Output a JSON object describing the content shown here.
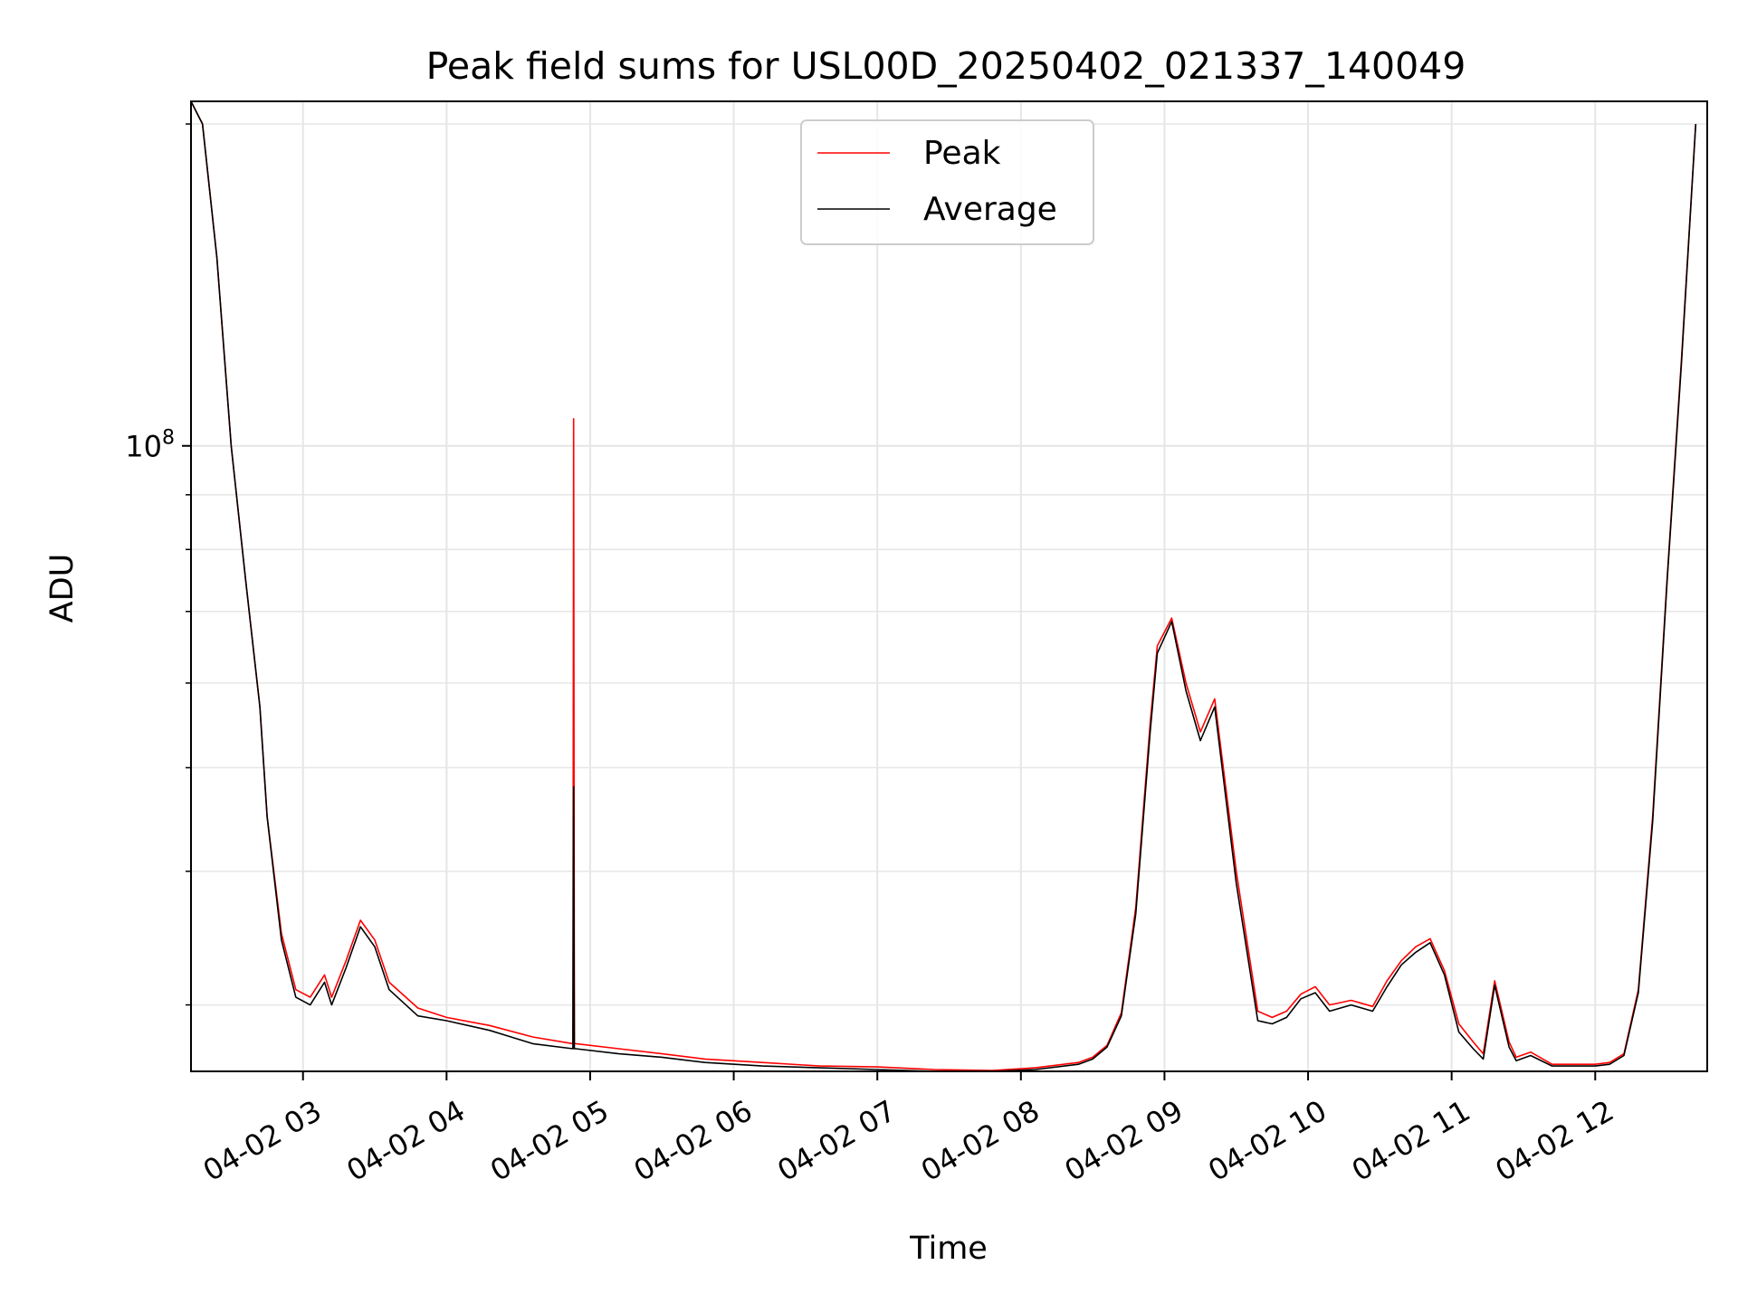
{
  "chart_data": {
    "type": "line",
    "title": "Peak field sums for USL00D_20250402_021337_140049",
    "xlabel": "Time",
    "ylabel": "ADU",
    "yscale": "log",
    "xlim": [
      2.22,
      12.78
    ],
    "ylim": [
      26000000,
      210000000
    ],
    "x_ticks": [
      {
        "value": 3,
        "label": "04-02 03"
      },
      {
        "value": 4,
        "label": "04-02 04"
      },
      {
        "value": 5,
        "label": "04-02 05"
      },
      {
        "value": 6,
        "label": "04-02 06"
      },
      {
        "value": 7,
        "label": "04-02 07"
      },
      {
        "value": 8,
        "label": "04-02 08"
      },
      {
        "value": 9,
        "label": "04-02 09"
      },
      {
        "value": 10,
        "label": "04-02 10"
      },
      {
        "value": 11,
        "label": "04-02 11"
      },
      {
        "value": 12,
        "label": "04-02 12"
      }
    ],
    "y_ticks": [
      {
        "value": 100000000,
        "base": "10",
        "exp": "8"
      }
    ],
    "y_minor_ticks": [
      30000000,
      40000000,
      50000000,
      60000000,
      70000000,
      80000000,
      90000000,
      200000000
    ],
    "grid": true,
    "legend": "top-center",
    "series": [
      {
        "name": "Peak",
        "color": "#ff0000",
        "x": [
          2.22,
          2.3,
          2.4,
          2.5,
          2.6,
          2.7,
          2.75,
          2.85,
          2.95,
          3.05,
          3.15,
          3.2,
          3.3,
          3.4,
          3.5,
          3.6,
          3.8,
          4.0,
          4.3,
          4.6,
          4.88,
          4.885,
          4.89,
          4.9,
          5.2,
          5.5,
          5.8,
          6.2,
          6.6,
          7.0,
          7.4,
          7.8,
          8.1,
          8.4,
          8.5,
          8.6,
          8.7,
          8.8,
          8.9,
          8.95,
          9.05,
          9.15,
          9.25,
          9.35,
          9.5,
          9.65,
          9.75,
          9.85,
          9.95,
          10.05,
          10.15,
          10.3,
          10.45,
          10.55,
          10.65,
          10.75,
          10.85,
          10.95,
          11.05,
          11.15,
          11.22,
          11.3,
          11.4,
          11.45,
          11.55,
          11.7,
          11.9,
          12.0,
          12.1,
          12.2,
          12.3,
          12.4,
          12.5,
          12.6,
          12.7
        ],
        "y": [
          210000000,
          200000000,
          150000000,
          100000000,
          75000000,
          57000000,
          45000000,
          35000000,
          31000000,
          30500000,
          32000000,
          30500000,
          33000000,
          36000000,
          34500000,
          31500000,
          29800000,
          29200000,
          28700000,
          28000000,
          27600000,
          106000000,
          27600000,
          27600000,
          27300000,
          27000000,
          26700000,
          26500000,
          26300000,
          26250000,
          26100000,
          26050000,
          26200000,
          26500000,
          26800000,
          27500000,
          29500000,
          37000000,
          55000000,
          65000000,
          69000000,
          60000000,
          54000000,
          58000000,
          40000000,
          29600000,
          29200000,
          29600000,
          30700000,
          31200000,
          30000000,
          30300000,
          29900000,
          31600000,
          33000000,
          34000000,
          34600000,
          32300000,
          28800000,
          27700000,
          27000000,
          31600000,
          27700000,
          26800000,
          27100000,
          26400000,
          26400000,
          26400000,
          26500000,
          27000000,
          31000000,
          45000000,
          75000000,
          120000000,
          200000000
        ]
      },
      {
        "name": "Average",
        "color": "#000000",
        "x": [
          2.22,
          2.3,
          2.4,
          2.5,
          2.6,
          2.7,
          2.75,
          2.85,
          2.95,
          3.05,
          3.15,
          3.2,
          3.3,
          3.4,
          3.5,
          3.6,
          3.8,
          4.0,
          4.3,
          4.6,
          4.88,
          4.885,
          4.89,
          4.9,
          5.2,
          5.5,
          5.8,
          6.2,
          6.6,
          7.0,
          7.4,
          7.8,
          8.1,
          8.4,
          8.5,
          8.6,
          8.7,
          8.8,
          8.9,
          8.95,
          9.05,
          9.15,
          9.25,
          9.35,
          9.5,
          9.65,
          9.75,
          9.85,
          9.95,
          10.05,
          10.15,
          10.3,
          10.45,
          10.55,
          10.65,
          10.75,
          10.85,
          10.95,
          11.05,
          11.15,
          11.22,
          11.3,
          11.4,
          11.45,
          11.55,
          11.7,
          11.9,
          12.0,
          12.1,
          12.2,
          12.3,
          12.4,
          12.5,
          12.6,
          12.7
        ],
        "y": [
          210000000,
          200000000,
          150000000,
          100000000,
          75000000,
          57000000,
          45000000,
          34500000,
          30500000,
          30000000,
          31500000,
          30000000,
          32500000,
          35500000,
          34000000,
          31000000,
          29300000,
          29000000,
          28400000,
          27600000,
          27300000,
          48000000,
          27300000,
          27300000,
          27000000,
          26800000,
          26500000,
          26300000,
          26200000,
          26100000,
          26000000,
          26000000,
          26100000,
          26400000,
          26700000,
          27400000,
          29300000,
          36500000,
          54000000,
          64000000,
          68500000,
          59000000,
          53000000,
          57000000,
          39000000,
          29000000,
          28800000,
          29200000,
          30400000,
          30800000,
          29600000,
          30000000,
          29600000,
          31200000,
          32700000,
          33600000,
          34300000,
          32000000,
          28300000,
          27300000,
          26700000,
          31300000,
          27400000,
          26600000,
          26900000,
          26300000,
          26300000,
          26300000,
          26400000,
          26900000,
          30800000,
          44500000,
          74500000,
          119000000,
          200000000
        ]
      }
    ]
  }
}
